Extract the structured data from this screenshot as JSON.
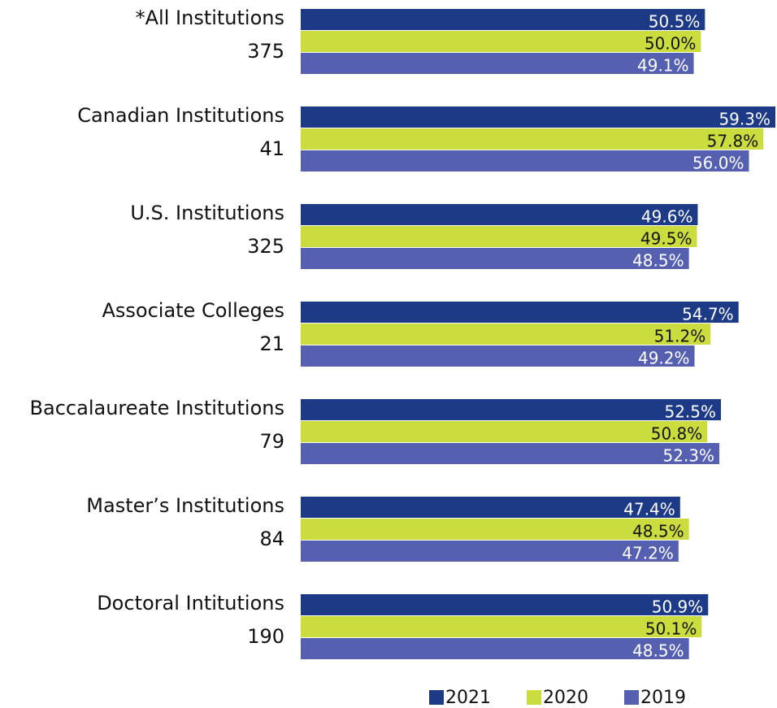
{
  "chart_data": {
    "type": "bar",
    "orientation": "horizontal",
    "categories": [
      "*All Institutions",
      "Canadian Institutions",
      "U.S. Institutions",
      "Associate Colleges",
      "Baccalaureate Institutions",
      "Master’s Institutions",
      "Doctoral Intitutions"
    ],
    "category_counts": [
      375,
      41,
      325,
      21,
      79,
      84,
      190
    ],
    "series": [
      {
        "name": "2021",
        "color": "#1c3a86",
        "values": [
          50.5,
          59.3,
          49.6,
          54.7,
          52.5,
          47.4,
          50.9
        ],
        "value_labels": [
          "50.5%",
          "59.3%",
          "49.6%",
          "54.7%",
          "52.5%",
          "47.4%",
          "50.9%"
        ]
      },
      {
        "name": "2020",
        "color": "#cbdc3e",
        "values": [
          50.0,
          57.8,
          49.5,
          51.2,
          50.8,
          48.5,
          50.1
        ],
        "value_labels": [
          "50.0%",
          "57.8%",
          "49.5%",
          "51.2%",
          "50.8%",
          "48.5%",
          "50.1%"
        ]
      },
      {
        "name": "2019",
        "color": "#5560b0",
        "values": [
          49.1,
          56.0,
          48.5,
          49.2,
          52.3,
          47.2,
          48.5
        ],
        "value_labels": [
          "49.1%",
          "56.0%",
          "48.5%",
          "49.2%",
          "52.3%",
          "47.2%",
          "48.5%"
        ]
      }
    ],
    "legend": "bottom"
  }
}
